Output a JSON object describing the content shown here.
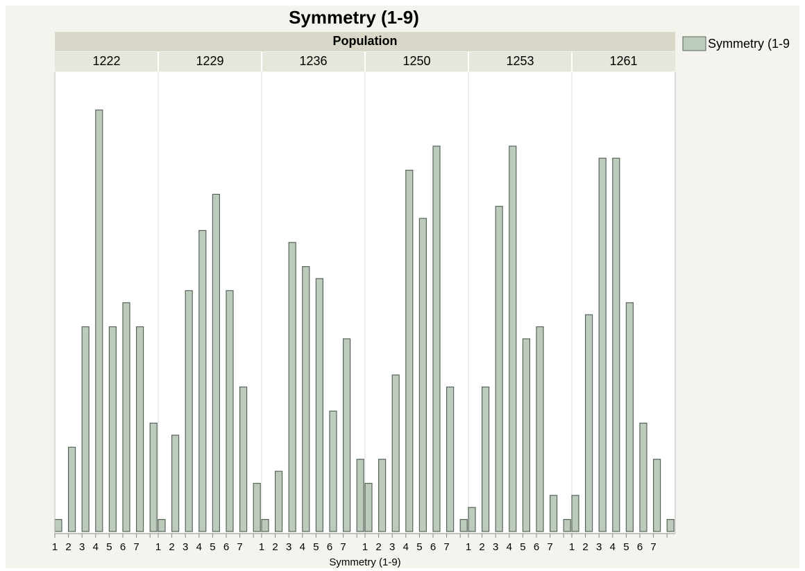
{
  "chart_data": {
    "type": "bar",
    "title": "Symmetry (1-9)",
    "x_label": "Symmetry (1-9)",
    "facet_label": "Population",
    "legend_name": "Symmetry (1-9",
    "color": "#bccbbb",
    "edge_color": "#56645a",
    "categories": [
      "1",
      "2",
      "3",
      "4",
      "5",
      "6",
      "7",
      null
    ],
    "panels": [
      {
        "name": "1222",
        "values": [
          1,
          7,
          17,
          35,
          17,
          19,
          17,
          9
        ]
      },
      {
        "name": "1229",
        "values": [
          1,
          8,
          20,
          25,
          28,
          20,
          12,
          4
        ]
      },
      {
        "name": "1236",
        "values": [
          1,
          5,
          24,
          22,
          21,
          10,
          16,
          6
        ]
      },
      {
        "name": "1250",
        "values": [
          4,
          6,
          13,
          30,
          26,
          32,
          12,
          1
        ]
      },
      {
        "name": "1253",
        "values": [
          2,
          12,
          27,
          32,
          16,
          17,
          3,
          1
        ]
      },
      {
        "name": "1261",
        "values": [
          3,
          18,
          31,
          31,
          19,
          9,
          6,
          1
        ]
      }
    ]
  }
}
